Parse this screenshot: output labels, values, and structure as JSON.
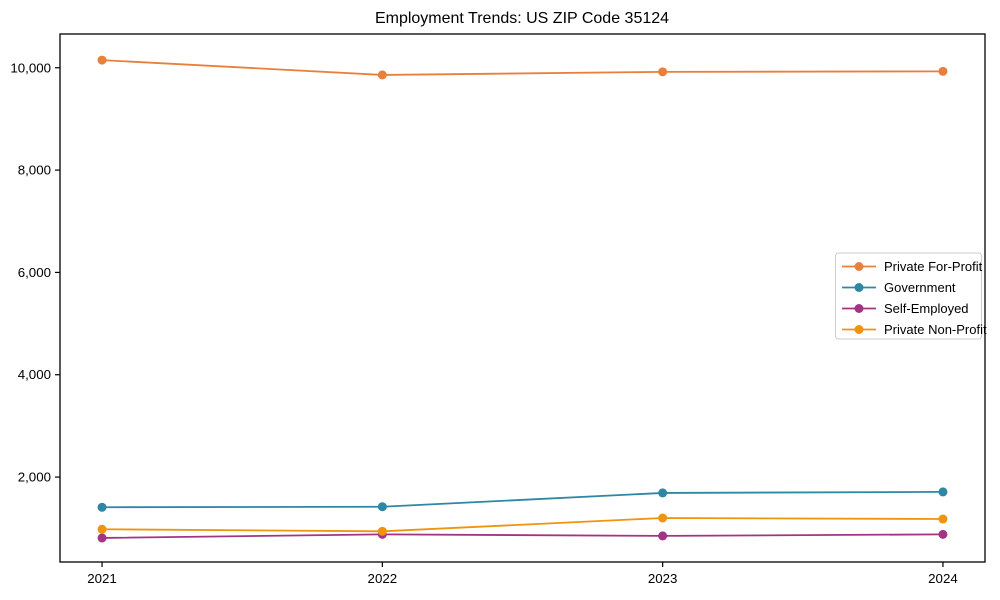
{
  "chart_data": {
    "type": "line",
    "title": "Employment Trends: US ZIP Code 35124",
    "x": [
      2021,
      2022,
      2023,
      2024
    ],
    "x_tick_labels": [
      "2021",
      "2022",
      "2023",
      "2024"
    ],
    "y_ticks": [
      2000,
      4000,
      6000,
      8000,
      10000
    ],
    "y_tick_labels": [
      "2,000",
      "4,000",
      "6,000",
      "8,000",
      "10,000"
    ],
    "xlim": [
      2020.85,
      2024.15
    ],
    "ylim": [
      340,
      10660
    ],
    "grid": false,
    "legend_position": "right-center",
    "background_color": "#ffffff",
    "axis_color": "#000000",
    "legend_border_color": "#cccccc",
    "series": [
      {
        "name": "Private For-Profit",
        "color": "#e8803d",
        "values": [
          10150,
          9860,
          9920,
          9930
        ]
      },
      {
        "name": "Government",
        "color": "#2e87a3",
        "values": [
          1410,
          1420,
          1690,
          1710
        ]
      },
      {
        "name": "Self-Employed",
        "color": "#a23582",
        "values": [
          810,
          880,
          850,
          880
        ]
      },
      {
        "name": "Private Non-Profit",
        "color": "#ef940d",
        "values": [
          980,
          940,
          1200,
          1180
        ]
      }
    ]
  }
}
